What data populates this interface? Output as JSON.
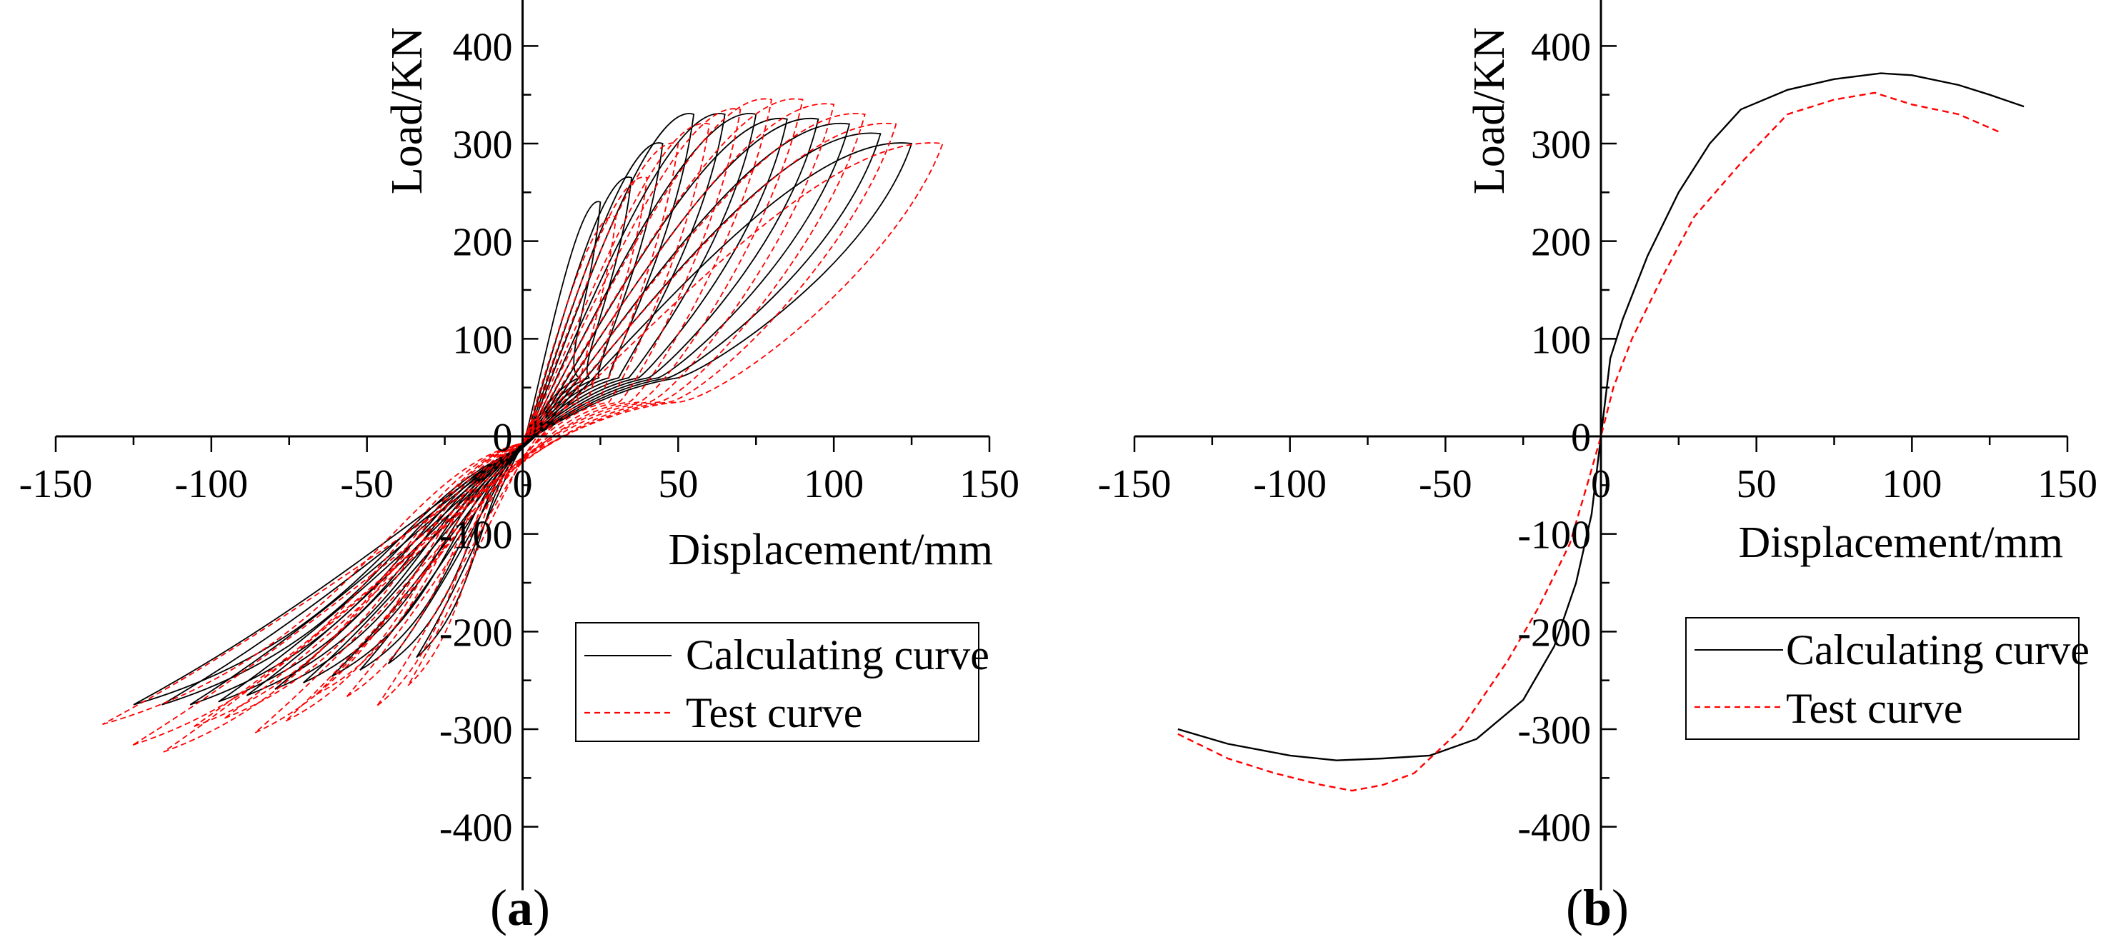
{
  "colors": {
    "calculating": "#000000",
    "test": "#ff0000",
    "axis": "#000000"
  },
  "chart_data": [
    {
      "panel": "(a)",
      "panel_letter": "a",
      "type": "line",
      "subtype": "hysteresis",
      "xlabel": "Displacement/mm",
      "ylabel": "Load/KN",
      "xlim": [
        -150,
        150
      ],
      "ylim": [
        -450,
        450
      ],
      "xticks": [
        -150,
        -100,
        -50,
        0,
        50,
        100,
        150
      ],
      "yticks": [
        -400,
        -300,
        -200,
        -100,
        0,
        100,
        200,
        300,
        400
      ],
      "xtick_labels": [
        "-150",
        "-100",
        "-50",
        "0",
        "50",
        "100",
        "150"
      ],
      "ytick_labels": [
        "-400",
        "-300",
        "-200",
        "-100",
        "0",
        "100",
        "200",
        "300",
        "400"
      ],
      "legend": {
        "placement": "bottom-right",
        "entries": [
          "Calculating curve",
          "Test curve"
        ]
      },
      "series": [
        {
          "name": "Calculating curve",
          "style": "solid",
          "loops": [
            {
              "d": 25,
              "F": 240
            },
            {
              "d": 35,
              "F": 265
            },
            {
              "d": 45,
              "F": 300
            },
            {
              "d": 55,
              "F": 330
            },
            {
              "d": 65,
              "F": 330
            },
            {
              "d": 75,
              "F": 330
            },
            {
              "d": 85,
              "F": 325
            },
            {
              "d": 95,
              "F": 325
            },
            {
              "d": 105,
              "F": 320
            },
            {
              "d": 115,
              "F": 310
            },
            {
              "d": 125,
              "F": 300
            }
          ],
          "negative_peak": {
            "d": -125,
            "F": -275
          }
        },
        {
          "name": "Test curve",
          "style": "dashed",
          "loops": [
            {
              "d": 30,
              "F": 225
            },
            {
              "d": 40,
              "F": 265
            },
            {
              "d": 50,
              "F": 300
            },
            {
              "d": 60,
              "F": 320
            },
            {
              "d": 70,
              "F": 335
            },
            {
              "d": 80,
              "F": 345
            },
            {
              "d": 90,
              "F": 345
            },
            {
              "d": 100,
              "F": 340
            },
            {
              "d": 110,
              "F": 330
            },
            {
              "d": 120,
              "F": 320
            },
            {
              "d": 135,
              "F": 300
            }
          ],
          "negative_peak": {
            "d": -135,
            "F": -310
          }
        }
      ]
    },
    {
      "panel": "(b)",
      "panel_letter": "b",
      "type": "line",
      "subtype": "skeleton",
      "xlabel": "Displacement/mm",
      "ylabel": "Load/KN",
      "xlim": [
        -150,
        150
      ],
      "ylim": [
        -450,
        450
      ],
      "xticks": [
        -150,
        -100,
        -50,
        0,
        50,
        100,
        150
      ],
      "yticks": [
        -400,
        -300,
        -200,
        -100,
        0,
        100,
        200,
        300,
        400
      ],
      "xtick_labels": [
        "-150",
        "-100",
        "-50",
        "0",
        "50",
        "100",
        "150"
      ],
      "ytick_labels": [
        "-400",
        "-300",
        "-200",
        "-100",
        "0",
        "100",
        "200",
        "300",
        "400"
      ],
      "legend": {
        "placement": "bottom-right",
        "entries": [
          "Calculating curve",
          "Test curve"
        ]
      },
      "series": [
        {
          "name": "Calculating curve",
          "style": "solid",
          "points": [
            [
              -136,
              -300
            ],
            [
              -120,
              -315
            ],
            [
              -100,
              -327
            ],
            [
              -85,
              -332
            ],
            [
              -70,
              -330
            ],
            [
              -55,
              -327
            ],
            [
              -40,
              -310
            ],
            [
              -25,
              -270
            ],
            [
              -15,
              -215
            ],
            [
              -8,
              -150
            ],
            [
              -3,
              -80
            ],
            [
              0,
              0
            ],
            [
              3,
              80
            ],
            [
              7,
              120
            ],
            [
              15,
              185
            ],
            [
              25,
              250
            ],
            [
              35,
              300
            ],
            [
              45,
              335
            ],
            [
              60,
              355
            ],
            [
              75,
              366
            ],
            [
              90,
              372
            ],
            [
              100,
              370
            ],
            [
              115,
              360
            ],
            [
              125,
              350
            ],
            [
              136,
              338
            ]
          ]
        },
        {
          "name": "Test curve",
          "style": "dashed",
          "points": [
            [
              -136,
              -305
            ],
            [
              -120,
              -330
            ],
            [
              -105,
              -345
            ],
            [
              -90,
              -357
            ],
            [
              -80,
              -363
            ],
            [
              -70,
              -357
            ],
            [
              -60,
              -345
            ],
            [
              -45,
              -300
            ],
            [
              -30,
              -230
            ],
            [
              -20,
              -175
            ],
            [
              -10,
              -110
            ],
            [
              -4,
              -45
            ],
            [
              0,
              0
            ],
            [
              4,
              50
            ],
            [
              10,
              100
            ],
            [
              20,
              165
            ],
            [
              30,
              225
            ],
            [
              45,
              280
            ],
            [
              60,
              330
            ],
            [
              75,
              345
            ],
            [
              88,
              352
            ],
            [
              100,
              340
            ],
            [
              115,
              330
            ],
            [
              128,
              312
            ]
          ]
        }
      ]
    }
  ]
}
